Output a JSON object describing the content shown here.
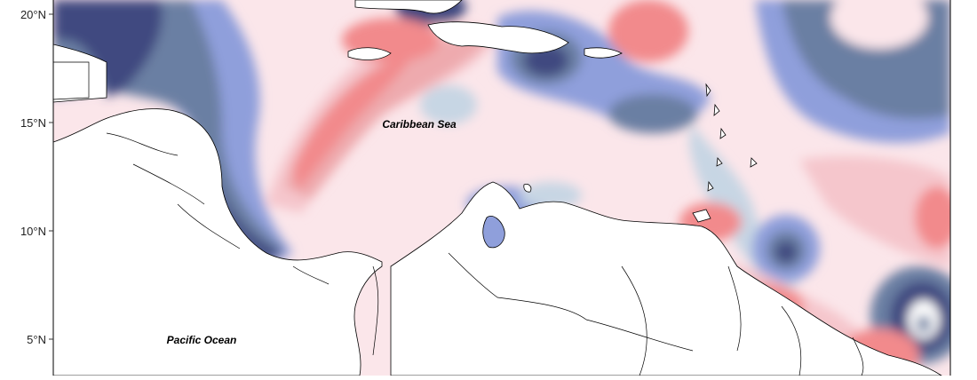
{
  "map": {
    "lat_labels": [
      "20°N",
      "15°N",
      "10°N",
      "5°N"
    ],
    "place_labels": {
      "caribbean": "Caribbean Sea",
      "pacific": "Pacific Ocean"
    },
    "palette": {
      "blue_dark": "#3f4a80",
      "blue_mid": "#6a7fa3",
      "blue": "#8f9fdb",
      "blue_light": "#c7d6e4",
      "pink_light": "#fbe6ea",
      "pink": "#f5c6cc",
      "pink_mid": "#eeaaae",
      "red": "#f28a8c",
      "land": "#ffffff",
      "coast": "#000000"
    }
  }
}
